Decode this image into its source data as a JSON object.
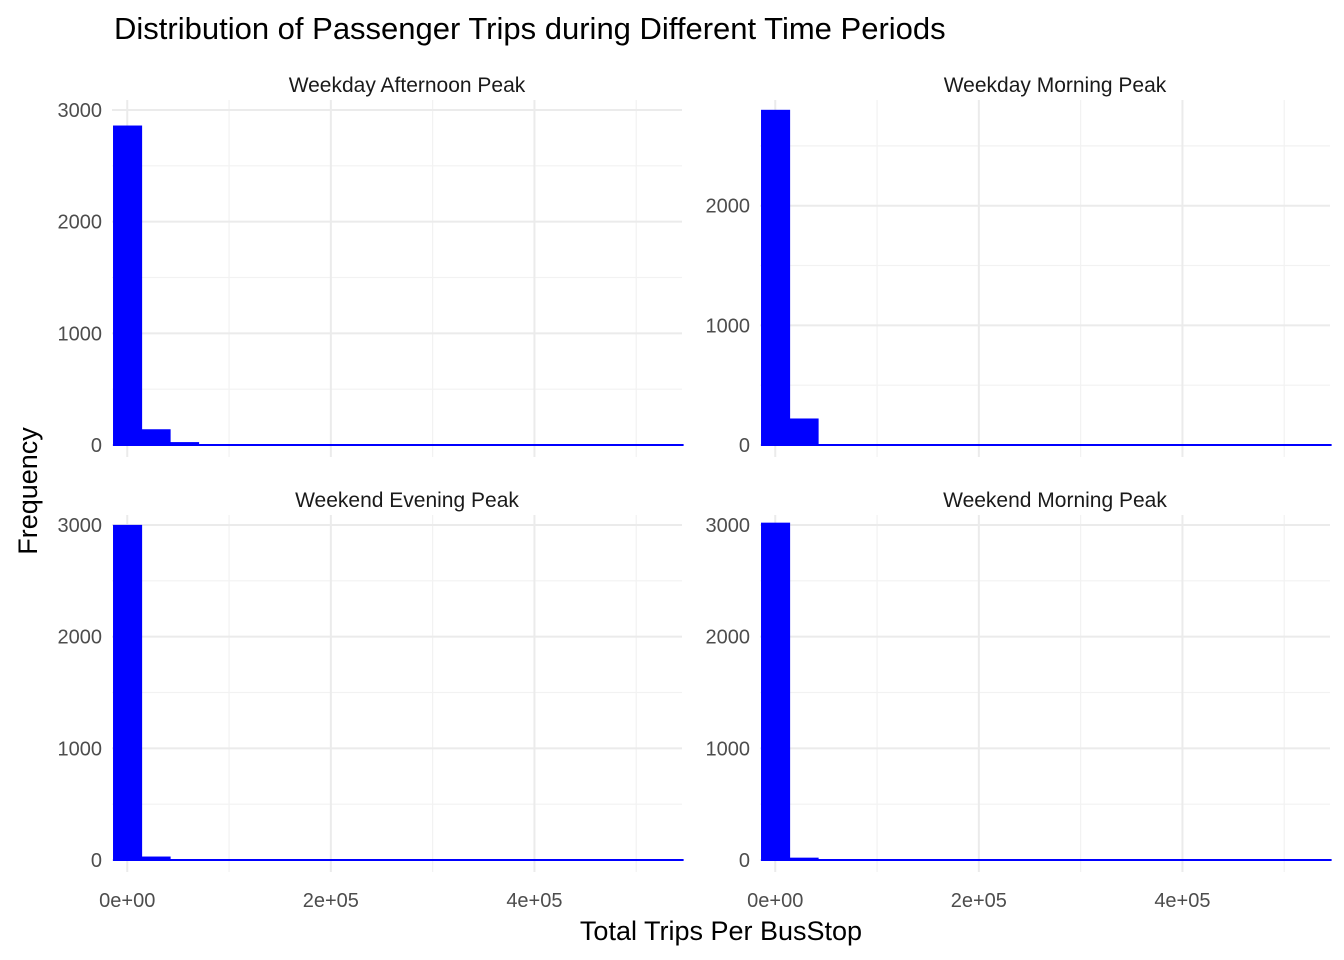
{
  "chart_data": {
    "type": "bar",
    "title": "Distribution of Passenger Trips during Different Time Periods",
    "xlabel": "Total Trips Per BusStop",
    "ylabel": "Frequency",
    "bar_color": "#0000ff",
    "xlim": [
      -15000,
      545000
    ],
    "x_ticks": [
      0,
      200000,
      400000
    ],
    "x_tick_labels": [
      "0e+00",
      "2e+05",
      "4e+05"
    ],
    "bin_width": 28000,
    "first_bin_start": -14000,
    "panels": [
      {
        "name": "Weekday Afternoon Peak",
        "ylim": [
          0,
          3000
        ],
        "y_ticks": [
          0,
          1000,
          2000,
          3000
        ],
        "counts": [
          2870,
          150,
          35,
          10,
          6,
          3,
          3,
          2,
          2,
          2,
          1,
          1,
          1,
          1,
          1,
          1,
          1,
          1,
          1,
          1
        ]
      },
      {
        "name": "Weekday Morning Peak",
        "ylim": [
          0,
          2800
        ],
        "y_ticks": [
          0,
          1000,
          2000
        ],
        "counts": [
          2810,
          230,
          15,
          7,
          4,
          3,
          2,
          2,
          1,
          1,
          1,
          1,
          1,
          1,
          1,
          1,
          1,
          1,
          1,
          1
        ]
      },
      {
        "name": "Weekend Evening Peak",
        "ylim": [
          0,
          3000
        ],
        "y_ticks": [
          0,
          1000,
          2000,
          3000
        ],
        "counts": [
          3010,
          40,
          10,
          5,
          3,
          2,
          2,
          1,
          1,
          1,
          1,
          1,
          1,
          1,
          1,
          1,
          1,
          1,
          1,
          1
        ]
      },
      {
        "name": "Weekend Morning Peak",
        "ylim": [
          0,
          3000
        ],
        "y_ticks": [
          0,
          1000,
          2000,
          3000
        ],
        "counts": [
          3030,
          30,
          10,
          5,
          3,
          2,
          2,
          1,
          1,
          1,
          1,
          1,
          1,
          1,
          1,
          1,
          1,
          1,
          1,
          1
        ]
      }
    ]
  }
}
